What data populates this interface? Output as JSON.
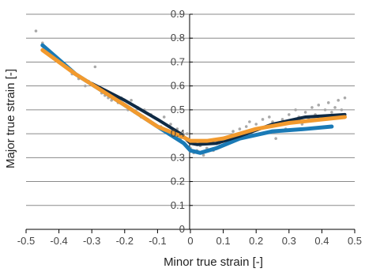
{
  "chart_data": {
    "type": "scatter",
    "xlabel": "Minor true strain [-]",
    "ylabel": "Major true strain [-]",
    "xlim": [
      -0.5,
      0.5
    ],
    "ylim": [
      0,
      0.9
    ],
    "xticks": [
      -0.5,
      -0.4,
      -0.3,
      -0.2,
      -0.1,
      0,
      0.1,
      0.2,
      0.3,
      0.4,
      0.5
    ],
    "xtick_labels": [
      "-0.5",
      "-0.4",
      "-0.3",
      "-0.2",
      "-0.1",
      "0",
      "0.1",
      "0.2",
      "0.3",
      "0.4",
      "0.5"
    ],
    "yticks": [
      0,
      0.1,
      0.2,
      0.3,
      0.4,
      0.5,
      0.6,
      0.7,
      0.8,
      0.9
    ],
    "ytick_labels": [
      "0",
      "0.1",
      "0.2",
      "0.3",
      "0.4",
      "0.5",
      "0.6",
      "0.7",
      "0.8",
      "0.9"
    ],
    "grid": "horizontal",
    "legend": "none",
    "series": [
      {
        "kind": "scatter",
        "color": "#a9a9a9",
        "points": [
          [
            -0.47,
            0.83
          ],
          [
            -0.45,
            0.78
          ],
          [
            -0.44,
            0.76
          ],
          [
            -0.43,
            0.74
          ],
          [
            -0.42,
            0.72
          ],
          [
            -0.4,
            0.7
          ],
          [
            -0.38,
            0.68
          ],
          [
            -0.36,
            0.65
          ],
          [
            -0.34,
            0.63
          ],
          [
            -0.32,
            0.6
          ],
          [
            -0.31,
            0.62
          ],
          [
            -0.29,
            0.68
          ],
          [
            -0.28,
            0.59
          ],
          [
            -0.27,
            0.57
          ],
          [
            -0.26,
            0.56
          ],
          [
            -0.25,
            0.55
          ],
          [
            -0.24,
            0.54
          ],
          [
            -0.23,
            0.56
          ],
          [
            -0.22,
            0.53
          ],
          [
            -0.21,
            0.55
          ],
          [
            -0.2,
            0.52
          ],
          [
            -0.19,
            0.5
          ],
          [
            -0.18,
            0.54
          ],
          [
            -0.17,
            0.49
          ],
          [
            -0.16,
            0.51
          ],
          [
            -0.15,
            0.47
          ],
          [
            -0.14,
            0.5
          ],
          [
            -0.13,
            0.46
          ],
          [
            -0.12,
            0.48
          ],
          [
            -0.11,
            0.44
          ],
          [
            -0.1,
            0.46
          ],
          [
            -0.09,
            0.43
          ],
          [
            -0.08,
            0.47
          ],
          [
            -0.07,
            0.41
          ],
          [
            -0.06,
            0.44
          ],
          [
            -0.05,
            0.39
          ],
          [
            -0.04,
            0.42
          ],
          [
            -0.03,
            0.38
          ],
          [
            -0.02,
            0.36
          ],
          [
            -0.01,
            0.4
          ],
          [
            0.0,
            0.34
          ],
          [
            0.01,
            0.32
          ],
          [
            0.02,
            0.33
          ],
          [
            0.03,
            0.35
          ],
          [
            0.04,
            0.31
          ],
          [
            0.05,
            0.34
          ],
          [
            0.06,
            0.36
          ],
          [
            0.07,
            0.33
          ],
          [
            0.08,
            0.37
          ],
          [
            0.09,
            0.35
          ],
          [
            0.1,
            0.38
          ],
          [
            0.11,
            0.36
          ],
          [
            0.12,
            0.39
          ],
          [
            0.13,
            0.41
          ],
          [
            0.14,
            0.38
          ],
          [
            0.15,
            0.42
          ],
          [
            0.16,
            0.4
          ],
          [
            0.17,
            0.43
          ],
          [
            0.18,
            0.45
          ],
          [
            0.19,
            0.41
          ],
          [
            0.2,
            0.44
          ],
          [
            0.21,
            0.42
          ],
          [
            0.22,
            0.46
          ],
          [
            0.23,
            0.43
          ],
          [
            0.24,
            0.47
          ],
          [
            0.25,
            0.45
          ],
          [
            0.26,
            0.38
          ],
          [
            0.27,
            0.44
          ],
          [
            0.28,
            0.46
          ],
          [
            0.29,
            0.42
          ],
          [
            0.3,
            0.48
          ],
          [
            0.31,
            0.45
          ],
          [
            0.32,
            0.5
          ],
          [
            0.33,
            0.47
          ],
          [
            0.34,
            0.44
          ],
          [
            0.35,
            0.49
          ],
          [
            0.36,
            0.46
          ],
          [
            0.37,
            0.51
          ],
          [
            0.38,
            0.48
          ],
          [
            0.39,
            0.52
          ],
          [
            0.4,
            0.47
          ],
          [
            0.41,
            0.5
          ],
          [
            0.42,
            0.53
          ],
          [
            0.43,
            0.49
          ],
          [
            0.44,
            0.51
          ],
          [
            0.45,
            0.54
          ],
          [
            0.46,
            0.5
          ],
          [
            0.47,
            0.55
          ]
        ]
      },
      {
        "kind": "line",
        "color": "#1a7ab6",
        "width": 5,
        "points": [
          [
            -0.45,
            0.77
          ],
          [
            -0.35,
            0.65
          ],
          [
            -0.2,
            0.52
          ],
          [
            -0.1,
            0.43
          ],
          [
            -0.02,
            0.36
          ],
          [
            0.0,
            0.33
          ],
          [
            0.03,
            0.32
          ],
          [
            0.08,
            0.34
          ],
          [
            0.15,
            0.38
          ],
          [
            0.25,
            0.41
          ],
          [
            0.35,
            0.42
          ],
          [
            0.43,
            0.43
          ]
        ]
      },
      {
        "kind": "line",
        "color": "#0f2a44",
        "width": 4,
        "points": [
          [
            -0.3,
            0.61
          ],
          [
            -0.2,
            0.54
          ],
          [
            -0.1,
            0.46
          ],
          [
            -0.03,
            0.4
          ],
          [
            0.0,
            0.36
          ],
          [
            0.02,
            0.355
          ],
          [
            0.08,
            0.36
          ],
          [
            0.15,
            0.39
          ],
          [
            0.25,
            0.44
          ],
          [
            0.35,
            0.47
          ],
          [
            0.47,
            0.48
          ]
        ]
      },
      {
        "kind": "line",
        "color": "#f29a2e",
        "width": 5,
        "points": [
          [
            -0.45,
            0.75
          ],
          [
            -0.35,
            0.65
          ],
          [
            -0.2,
            0.52
          ],
          [
            -0.1,
            0.43
          ],
          [
            -0.02,
            0.385
          ],
          [
            0.0,
            0.37
          ],
          [
            0.05,
            0.37
          ],
          [
            0.1,
            0.38
          ],
          [
            0.2,
            0.42
          ],
          [
            0.3,
            0.445
          ],
          [
            0.4,
            0.46
          ],
          [
            0.47,
            0.47
          ]
        ]
      }
    ]
  }
}
